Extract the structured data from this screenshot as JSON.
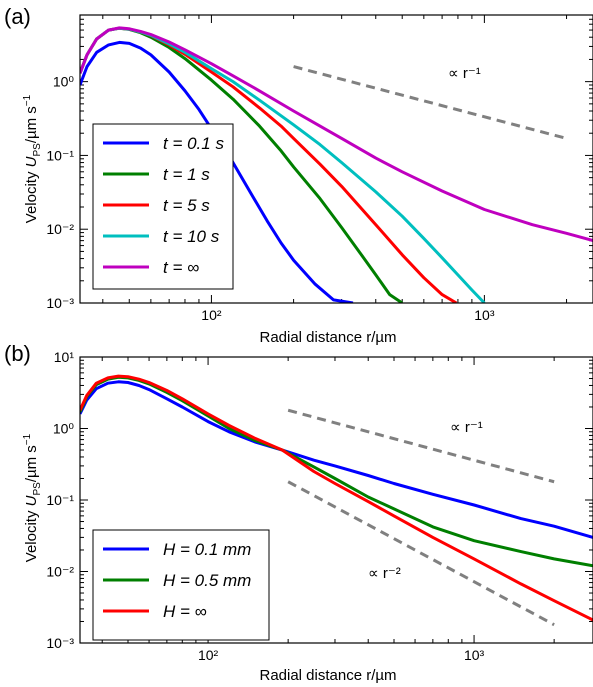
{
  "chart_data": [
    {
      "panel_label": "(a)",
      "type": "line",
      "log_x": true,
      "log_y": true,
      "xlim": [
        33,
        2500
      ],
      "ylim": [
        0.001,
        8
      ],
      "xlabel": "Radial distance r/µm",
      "ylabel": "Velocity U_PS/µm s⁻¹",
      "x_tick_labels": [
        {
          "value": 100,
          "label": "10²"
        },
        {
          "value": 1000,
          "label": "10³"
        }
      ],
      "y_tick_labels": [
        {
          "value": 1,
          "label": "10⁰"
        },
        {
          "value": 0.1,
          "label": "10⁻¹"
        },
        {
          "value": 0.01,
          "label": "10⁻²"
        },
        {
          "value": 0.001,
          "label": "10⁻³"
        }
      ],
      "legend_position": "lower-left",
      "series": [
        {
          "name": "t = 0.1 s",
          "color": "#0000ff",
          "x": [
            33,
            35,
            38,
            42,
            46,
            50,
            55,
            60,
            70,
            80,
            90,
            100,
            120,
            140,
            160,
            180,
            200,
            240,
            280,
            330
          ],
          "y": [
            0.9,
            1.6,
            2.5,
            3.15,
            3.4,
            3.3,
            2.85,
            2.3,
            1.35,
            0.75,
            0.42,
            0.23,
            0.08,
            0.03,
            0.013,
            0.0065,
            0.0038,
            0.0018,
            0.0011,
            0.001
          ]
        },
        {
          "name": "t = 1 s",
          "color": "#007f00",
          "x": [
            33,
            35,
            38,
            42,
            46,
            50,
            55,
            60,
            70,
            80,
            100,
            120,
            150,
            180,
            200,
            250,
            300,
            350,
            400,
            450,
            500
          ],
          "y": [
            1.3,
            2.3,
            3.8,
            5.0,
            5.3,
            5.1,
            4.6,
            4.0,
            2.9,
            2.05,
            1.05,
            0.58,
            0.25,
            0.115,
            0.07,
            0.026,
            0.0105,
            0.0048,
            0.0024,
            0.0013,
            0.001
          ]
        },
        {
          "name": "t = 5 s",
          "color": "#ff0000",
          "x": [
            33,
            35,
            38,
            42,
            46,
            50,
            55,
            60,
            70,
            80,
            100,
            120,
            150,
            180,
            200,
            250,
            300,
            400,
            500,
            600,
            700,
            790
          ],
          "y": [
            1.3,
            2.3,
            3.8,
            5.0,
            5.3,
            5.15,
            4.7,
            4.2,
            3.15,
            2.35,
            1.35,
            0.85,
            0.44,
            0.25,
            0.17,
            0.076,
            0.038,
            0.0115,
            0.0045,
            0.0022,
            0.0013,
            0.001
          ]
        },
        {
          "name": "t = 10 s",
          "color": "#00bfbf",
          "x": [
            33,
            35,
            38,
            42,
            46,
            50,
            55,
            60,
            70,
            80,
            100,
            120,
            150,
            200,
            250,
            300,
            400,
            500,
            600,
            700,
            800,
            900,
            1000
          ],
          "y": [
            1.3,
            2.3,
            3.8,
            5.0,
            5.3,
            5.15,
            4.7,
            4.25,
            3.25,
            2.5,
            1.5,
            1.0,
            0.56,
            0.26,
            0.14,
            0.08,
            0.032,
            0.015,
            0.0075,
            0.0041,
            0.0024,
            0.0015,
            0.001
          ]
        },
        {
          "name": "t = ∞",
          "color": "#bf00bf",
          "x": [
            33,
            35,
            38,
            42,
            46,
            50,
            55,
            60,
            70,
            80,
            100,
            120,
            150,
            200,
            250,
            300,
            400,
            500,
            700,
            1000,
            1500,
            2000,
            2500
          ],
          "y": [
            1.3,
            2.3,
            3.8,
            5.0,
            5.35,
            5.2,
            4.8,
            4.35,
            3.45,
            2.7,
            1.75,
            1.2,
            0.75,
            0.4,
            0.25,
            0.17,
            0.092,
            0.06,
            0.033,
            0.0185,
            0.0115,
            0.0088,
            0.007
          ]
        }
      ],
      "reference_lines": [
        {
          "label": "∝ r⁻¹",
          "x": [
            200,
            2000
          ],
          "y": [
            1.6,
            0.17
          ]
        }
      ]
    },
    {
      "panel_label": "(b)",
      "type": "line",
      "log_x": true,
      "log_y": true,
      "xlim": [
        33,
        2800
      ],
      "ylim": [
        0.001,
        10
      ],
      "xlabel": "Radial distance r/µm",
      "ylabel": "Velocity U_PS/µm s⁻¹",
      "x_tick_labels": [
        {
          "value": 100,
          "label": "10²"
        },
        {
          "value": 1000,
          "label": "10³"
        }
      ],
      "y_tick_labels": [
        {
          "value": 10,
          "label": "10¹"
        },
        {
          "value": 1,
          "label": "10⁰"
        },
        {
          "value": 0.1,
          "label": "10⁻¹"
        },
        {
          "value": 0.01,
          "label": "10⁻²"
        },
        {
          "value": 0.001,
          "label": "10⁻³"
        }
      ],
      "legend_position": "lower-left",
      "series": [
        {
          "name": "H = 0.1 mm",
          "color": "#0000ff",
          "x": [
            33,
            35,
            38,
            42,
            46,
            50,
            55,
            60,
            70,
            80,
            100,
            120,
            150,
            190,
            250,
            300,
            400,
            500,
            700,
            1000,
            1500,
            2000,
            2800
          ],
          "y": [
            1.6,
            2.5,
            3.6,
            4.3,
            4.5,
            4.4,
            4.0,
            3.5,
            2.6,
            2.0,
            1.25,
            0.9,
            0.65,
            0.5,
            0.36,
            0.3,
            0.22,
            0.17,
            0.12,
            0.085,
            0.055,
            0.043,
            0.03
          ]
        },
        {
          "name": "H = 0.5 mm",
          "color": "#007f00",
          "x": [
            33,
            35,
            38,
            42,
            46,
            50,
            55,
            60,
            70,
            80,
            100,
            120,
            150,
            190,
            250,
            300,
            400,
            500,
            700,
            1000,
            1500,
            2000,
            2800
          ],
          "y": [
            1.7,
            2.8,
            4.1,
            4.9,
            5.2,
            5.1,
            4.7,
            4.2,
            3.2,
            2.45,
            1.5,
            1.0,
            0.68,
            0.5,
            0.29,
            0.2,
            0.11,
            0.075,
            0.042,
            0.027,
            0.019,
            0.015,
            0.012
          ]
        },
        {
          "name": "H = ∞",
          "color": "#ff0000",
          "x": [
            33,
            35,
            38,
            42,
            46,
            50,
            55,
            60,
            70,
            80,
            100,
            120,
            150,
            190,
            250,
            300,
            400,
            500,
            700,
            1000,
            1500,
            2000,
            2800
          ],
          "y": [
            1.8,
            2.9,
            4.3,
            5.1,
            5.4,
            5.3,
            4.9,
            4.4,
            3.4,
            2.6,
            1.6,
            1.1,
            0.73,
            0.5,
            0.25,
            0.17,
            0.095,
            0.06,
            0.03,
            0.015,
            0.0067,
            0.0039,
            0.0021
          ]
        }
      ],
      "reference_lines": [
        {
          "label": "∝ r⁻¹",
          "x": [
            200,
            2000
          ],
          "y": [
            1.8,
            0.18
          ]
        },
        {
          "label": "∝ r⁻²",
          "x": [
            200,
            2000
          ],
          "y": [
            0.18,
            0.0018
          ]
        }
      ]
    }
  ]
}
